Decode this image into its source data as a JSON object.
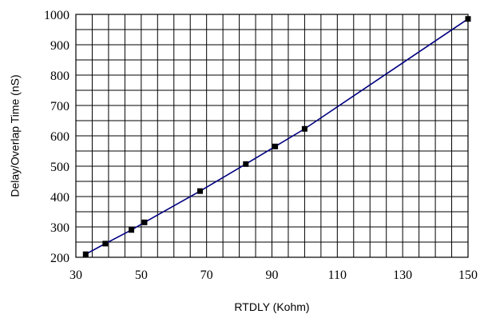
{
  "chart_data": {
    "type": "line",
    "title": "",
    "xlabel": "RTDLY (Kohm)",
    "ylabel": "Delay/Overlap Time (nS)",
    "xlim": [
      30,
      150
    ],
    "ylim": [
      200,
      1000
    ],
    "x_ticks": [
      "30",
      "50",
      "70",
      "90",
      "110",
      "130",
      "150"
    ],
    "y_ticks": [
      "200",
      "300",
      "400",
      "500",
      "600",
      "700",
      "800",
      "900",
      "1000"
    ],
    "grid": true,
    "legend": "none",
    "line_color": "#000080",
    "marker_color": "#000000",
    "series": [
      {
        "x": [
          33,
          39,
          47,
          51,
          68,
          82,
          91,
          100,
          150
        ],
        "y": [
          210,
          245,
          290,
          315,
          418,
          507,
          565,
          623,
          985
        ]
      }
    ]
  }
}
